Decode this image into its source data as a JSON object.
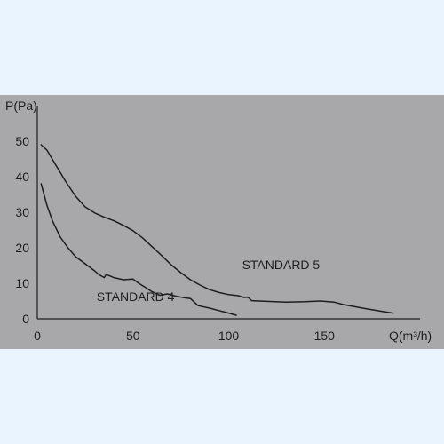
{
  "chart_data": {
    "type": "line",
    "xlabel": "Q(m³/h)",
    "ylabel": "P(Pa)",
    "xlim": [
      0,
      200
    ],
    "ylim": [
      0,
      60
    ],
    "x_ticks": [
      "0",
      "50",
      "100",
      "150"
    ],
    "y_ticks": [
      "0",
      "10",
      "20",
      "30",
      "40",
      "50"
    ],
    "grid": false,
    "colors": {
      "background": "#a8a8aa",
      "page": "#eaf4fe",
      "ink": "#1d1d1f"
    },
    "series": [
      {
        "name": "STANDARD 5",
        "points": [
          [
            2,
            49
          ],
          [
            5,
            47.5
          ],
          [
            10,
            43
          ],
          [
            15,
            38.5
          ],
          [
            20,
            34.5
          ],
          [
            25,
            31.5
          ],
          [
            30,
            29.8
          ],
          [
            35,
            28.6
          ],
          [
            40,
            27.6
          ],
          [
            45,
            26.3
          ],
          [
            50,
            24.8
          ],
          [
            55,
            22.8
          ],
          [
            60,
            20.3
          ],
          [
            65,
            17.8
          ],
          [
            70,
            15.2
          ],
          [
            75,
            13
          ],
          [
            80,
            11
          ],
          [
            85,
            9.5
          ],
          [
            90,
            8.2
          ],
          [
            95,
            7.4
          ],
          [
            100,
            6.8
          ],
          [
            105,
            6.5
          ],
          [
            108,
            6
          ],
          [
            110,
            6.1
          ],
          [
            112,
            5.1
          ],
          [
            120,
            4.9
          ],
          [
            130,
            4.7
          ],
          [
            140,
            4.8
          ],
          [
            148,
            5
          ],
          [
            155,
            4.7
          ],
          [
            160,
            4
          ],
          [
            170,
            3
          ],
          [
            180,
            2.1
          ],
          [
            186,
            1.6
          ]
        ]
      },
      {
        "name": "STANDARD 4",
        "points": [
          [
            2,
            38
          ],
          [
            5,
            32
          ],
          [
            8,
            27.5
          ],
          [
            12,
            23
          ],
          [
            16,
            20
          ],
          [
            20,
            17.5
          ],
          [
            25,
            15.5
          ],
          [
            30,
            13.5
          ],
          [
            32,
            12.5
          ],
          [
            35,
            11.6
          ],
          [
            36,
            12.5
          ],
          [
            40,
            11.6
          ],
          [
            45,
            11
          ],
          [
            50,
            11.2
          ],
          [
            53,
            10
          ],
          [
            56,
            9
          ],
          [
            60,
            7.6
          ],
          [
            64,
            6.6
          ],
          [
            68,
            7
          ],
          [
            72,
            6.4
          ],
          [
            76,
            6
          ],
          [
            80,
            5.7
          ],
          [
            84,
            3.7
          ],
          [
            90,
            3
          ],
          [
            95,
            2.3
          ],
          [
            100,
            1.6
          ],
          [
            104,
            1
          ]
        ]
      }
    ],
    "annotations": [
      {
        "text": "STANDARD 5",
        "x": 107,
        "y": 14
      },
      {
        "text": "STANDARD 4",
        "x": 31,
        "y": 5
      }
    ]
  }
}
